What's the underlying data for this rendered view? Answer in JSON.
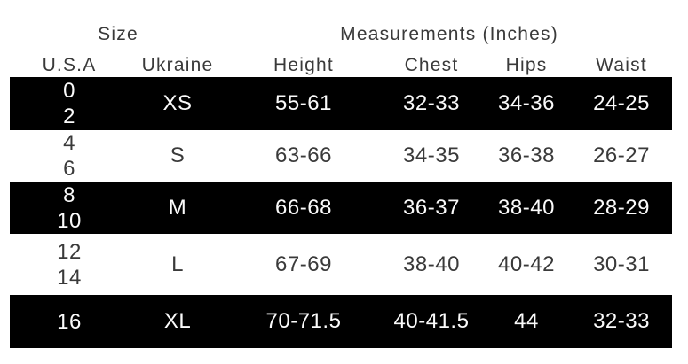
{
  "chart_data": {
    "type": "table",
    "header_groups": [
      {
        "label": "Size",
        "span": 2
      },
      {
        "label": "Measurements (Inches)",
        "span": 4
      }
    ],
    "columns": [
      "U.S.A",
      "Ukraine",
      "Height",
      "Chest",
      "Hips",
      "Waist"
    ],
    "rows": [
      {
        "usa_lines": [
          "0",
          "2"
        ],
        "ukraine": "XS",
        "height": "55-61",
        "chest": "32-33",
        "hips": "34-36",
        "waist": "24-25",
        "highlighted": true
      },
      {
        "usa_lines": [
          "4",
          "6"
        ],
        "ukraine": "S",
        "height": "63-66",
        "chest": "34-35",
        "hips": "36-38",
        "waist": "26-27",
        "highlighted": false
      },
      {
        "usa_lines": [
          "8",
          "10"
        ],
        "ukraine": "M",
        "height": "66-68",
        "chest": "36-37",
        "hips": "38-40",
        "waist": "28-29",
        "highlighted": true
      },
      {
        "usa_lines": [
          "12",
          "14"
        ],
        "ukraine": "L",
        "height": "67-69",
        "chest": "38-40",
        "hips": "40-42",
        "waist": "30-31",
        "highlighted": false
      },
      {
        "usa_lines": [
          "16"
        ],
        "ukraine": "XL",
        "height": "70-71.5",
        "chest": "40-41.5",
        "hips": "44",
        "waist": "32-33",
        "highlighted": true
      }
    ]
  },
  "colors": {
    "page_bg": "#ffffff",
    "row_highlight_bg": "#000000",
    "text_dark": "#3a3a3a",
    "text_light": "#fafafa"
  }
}
